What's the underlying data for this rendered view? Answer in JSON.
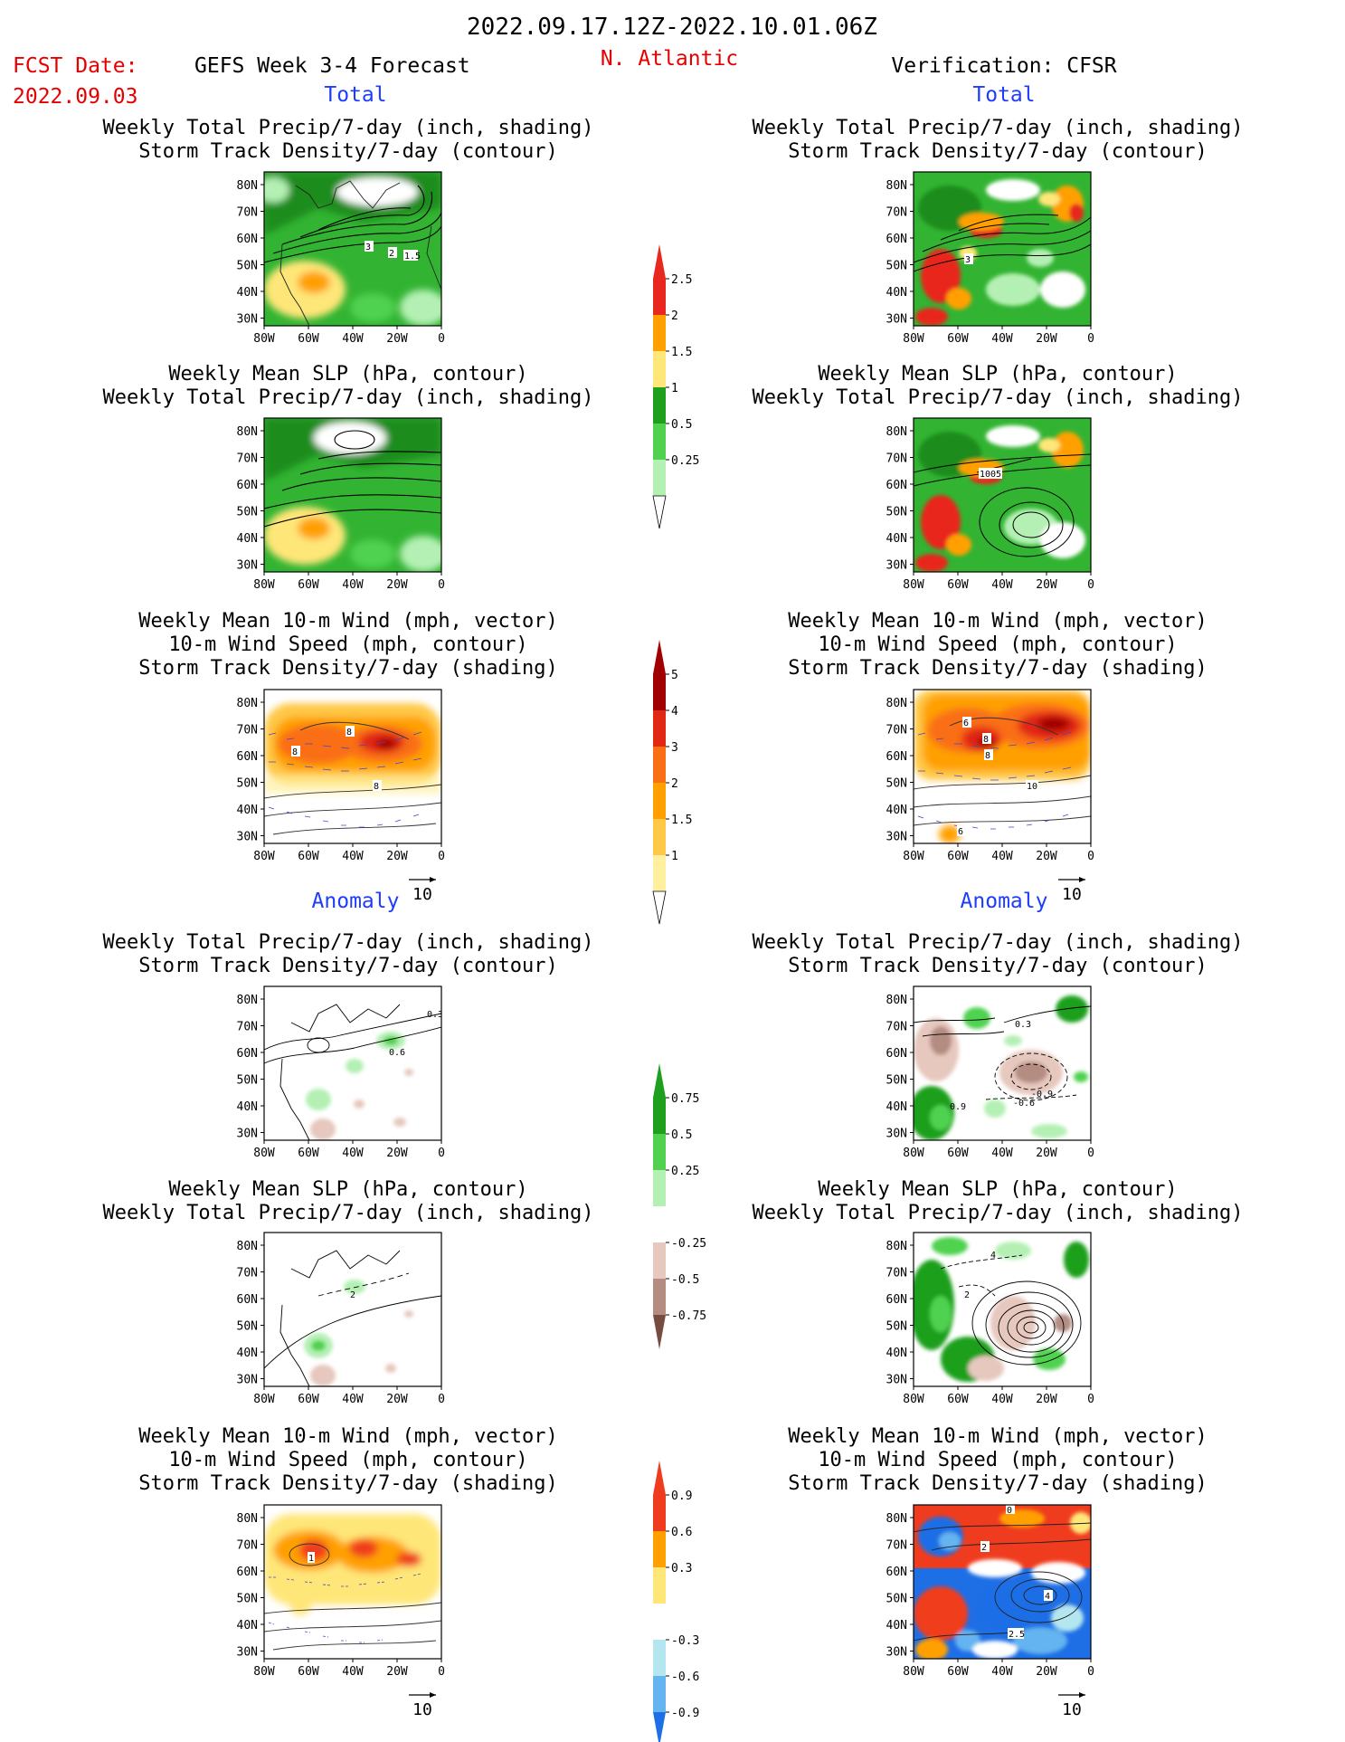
{
  "header": {
    "date_range": "2022.09.17.12Z-2022.10.01.06Z",
    "fcst_label": "FCST Date:",
    "fcst_date": "2022.09.03",
    "forecast_title": "GEFS Week 3-4 Forecast",
    "region": "N. Atlantic",
    "verification": "Verification: CFSR"
  },
  "sections": {
    "total": "Total",
    "anomaly": "Anomaly"
  },
  "panel_titles": {
    "precip_track": [
      "Weekly Total Precip/7-day (inch, shading)",
      "Storm Track Density/7-day (contour)"
    ],
    "slp_precip": [
      "Weekly Mean SLP (hPa, contour)",
      "Weekly Total Precip/7-day (inch, shading)"
    ],
    "wind_track": [
      "Weekly Mean 10-m Wind (mph, vector)",
      "10-m Wind Speed (mph, contour)",
      "Storm Track Density/7-day (shading)"
    ]
  },
  "axes": {
    "lat_labels": [
      "80N",
      "70N",
      "60N",
      "50N",
      "40N",
      "30N"
    ],
    "lon_labels": [
      "80W",
      "60W",
      "40W",
      "20W",
      "0"
    ]
  },
  "vector_ref": "10",
  "colorbars": {
    "precip_total": {
      "labels": [
        "2.5",
        "2",
        "1.5",
        "1",
        "0.5",
        "0.25"
      ],
      "colors": [
        "#e8281e",
        "#ffa000",
        "#ffe678",
        "#1ea01e",
        "#50d250",
        "#b4f0b4"
      ]
    },
    "track_total": {
      "labels": [
        "5",
        "4",
        "3",
        "2",
        "1.5",
        "1"
      ],
      "colors": [
        "#a00000",
        "#e12814",
        "#fa6e14",
        "#ffa000",
        "#ffc846",
        "#fff0a0"
      ]
    },
    "precip_anom": {
      "labels": [
        "0.75",
        "0.5",
        "0.25",
        "-0.25",
        "-0.5",
        "-0.75"
      ],
      "colors": [
        "#1ea01e",
        "#50d250",
        "#b4f0b4",
        "#ffffff",
        "#e6c8be",
        "#b48c82",
        "#784b41"
      ]
    },
    "track_anom": {
      "labels": [
        "0.9",
        "0.6",
        "0.3",
        "-0.3",
        "-0.6",
        "-0.9"
      ],
      "colors": [
        "#f03c1e",
        "#ffa000",
        "#ffe678",
        "#ffffff",
        "#b4e6f0",
        "#64b4f0",
        "#1e6ee6"
      ]
    }
  },
  "map_labels": {
    "p1": [
      "3",
      "2",
      "1.5"
    ],
    "p3": [
      "8",
      "8",
      "8"
    ],
    "p4": [
      "0.3",
      "0.6"
    ],
    "p5": [
      "2"
    ],
    "p6": [
      "1"
    ],
    "r1": [
      "3"
    ],
    "r2": [
      "1005"
    ],
    "r3": [
      "6",
      "8",
      "8",
      "10",
      "6"
    ],
    "r4": [
      "0.3",
      "-0.9",
      "-0.6",
      "0.9"
    ],
    "r5": [
      "4",
      "2"
    ],
    "r6": [
      "0",
      "2",
      "4",
      "2.5"
    ]
  }
}
